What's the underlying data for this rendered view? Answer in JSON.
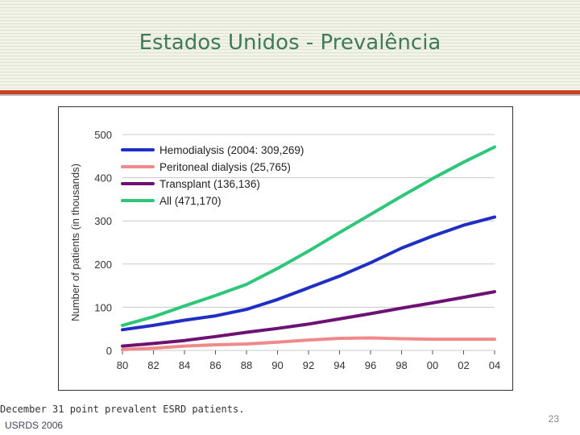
{
  "slide": {
    "title": "Estados Unidos - Prevalência",
    "caption": "December 31 point prevalent ESRD patients.",
    "source": "USRDS 2006",
    "page_number": "23"
  },
  "colors": {
    "title": "#3f7a5b",
    "accent_rule": "#c8401f",
    "hemodialysis": "#1f2fc4",
    "peritoneal": "#f08a8a",
    "transplant": "#6d1173",
    "all": "#2ec77a"
  },
  "chart_data": {
    "type": "line",
    "title": "",
    "xlabel": "",
    "ylabel": "Number of patients (in thousands)",
    "x": [
      1980,
      1982,
      1984,
      1986,
      1988,
      1990,
      1992,
      1994,
      1996,
      1998,
      2000,
      2002,
      2004
    ],
    "x_tick_labels": [
      "80",
      "82",
      "84",
      "86",
      "88",
      "90",
      "92",
      "94",
      "96",
      "98",
      "00",
      "02",
      "04"
    ],
    "y_ticks": [
      "0",
      "100",
      "200",
      "300",
      "400",
      "500"
    ],
    "xlim": [
      1980,
      2004
    ],
    "ylim": [
      0,
      500
    ],
    "grid": "horizontal",
    "legend_position": "top-left",
    "series": [
      {
        "name": "Hemodialysis (2004: 309,269)",
        "color": "#1f2fc4",
        "values": [
          48,
          58,
          70,
          80,
          95,
          118,
          145,
          172,
          203,
          237,
          265,
          290,
          309
        ]
      },
      {
        "name": "Peritoneal dialysis (25,765)",
        "color": "#f08a8a",
        "values": [
          2,
          5,
          10,
          13,
          15,
          19,
          24,
          28,
          29,
          27,
          26,
          26,
          26
        ]
      },
      {
        "name": "Transplant (136,136)",
        "color": "#6d1173",
        "values": [
          10,
          16,
          23,
          32,
          42,
          51,
          61,
          73,
          85,
          98,
          110,
          123,
          136
        ]
      },
      {
        "name": "All (471,170)",
        "color": "#2ec77a",
        "values": [
          58,
          78,
          103,
          127,
          153,
          190,
          230,
          273,
          315,
          357,
          398,
          436,
          471
        ]
      }
    ]
  }
}
